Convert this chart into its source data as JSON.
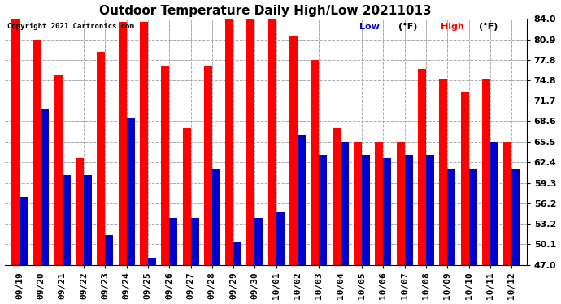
{
  "title": "Outdoor Temperature Daily High/Low 20211013",
  "copyright": "Copyright 2021 Cartronics.com",
  "legend_low": "Low",
  "legend_high": "High",
  "legend_unit": "(°F)",
  "yticks": [
    47.0,
    50.1,
    53.2,
    56.2,
    59.3,
    62.4,
    65.5,
    68.6,
    71.7,
    74.8,
    77.8,
    80.9,
    84.0
  ],
  "dates": [
    "09/19",
    "09/20",
    "09/21",
    "09/22",
    "09/23",
    "09/24",
    "09/25",
    "09/26",
    "09/27",
    "09/28",
    "09/29",
    "09/30",
    "10/01",
    "10/02",
    "10/03",
    "10/04",
    "10/05",
    "10/06",
    "10/07",
    "10/08",
    "10/09",
    "10/10",
    "10/11",
    "10/12"
  ],
  "highs": [
    84.0,
    80.9,
    75.5,
    63.0,
    79.0,
    83.5,
    83.5,
    77.0,
    67.5,
    77.0,
    84.5,
    84.0,
    84.5,
    81.5,
    77.8,
    67.5,
    65.5,
    65.5,
    65.5,
    76.5,
    75.0,
    73.0,
    75.0,
    65.5
  ],
  "lows": [
    57.2,
    70.5,
    60.5,
    60.5,
    51.5,
    69.0,
    48.0,
    54.0,
    54.0,
    61.5,
    50.5,
    54.0,
    55.0,
    66.5,
    63.5,
    65.5,
    63.5,
    63.0,
    63.5,
    63.5,
    61.5,
    61.5,
    65.5,
    61.5
  ],
  "high_color": "#ff0000",
  "low_color": "#0000cc",
  "bg_color": "#ffffff",
  "grid_color": "#aaaaaa",
  "title_fontsize": 11,
  "tick_fontsize": 8,
  "ymin": 47.0,
  "ymax": 84.0
}
